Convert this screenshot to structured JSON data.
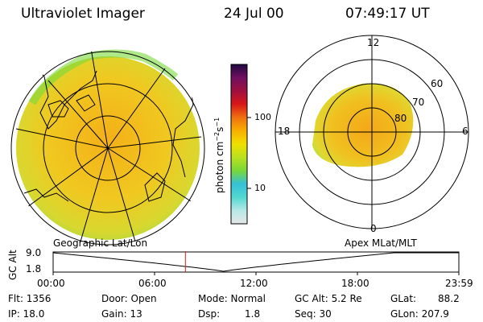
{
  "header": {
    "title": "Ultraviolet Imager",
    "date": "24 Jul 00",
    "time": "07:49:17 UT"
  },
  "geo_panel": {
    "label": "Geographic Lat/Lon"
  },
  "apex_panel": {
    "label": "Apex MLat/MLT",
    "mlt_labels": [
      "12",
      "18",
      "6",
      "0"
    ],
    "lat_labels": [
      "60",
      "70",
      "80"
    ]
  },
  "colorbar": {
    "unit_label": "photon cm",
    "unit_sup1": "−2",
    "unit_mid": "s",
    "unit_sup2": "−1",
    "tick_labels": [
      "100",
      "10"
    ],
    "colors": [
      "#e6e6e6",
      "#b8e8e8",
      "#52d8d0",
      "#36c0d8",
      "#78d838",
      "#b8e020",
      "#f0e000",
      "#f8b000",
      "#f07010",
      "#d81818",
      "#a01040",
      "#701060",
      "#200840"
    ]
  },
  "orbit_plot": {
    "ylabel": "GC Alt",
    "y_ticks": [
      "9.0",
      "1.8"
    ],
    "x_ticks": [
      "00:00",
      "06:00",
      "12:00",
      "18:00",
      "23:59"
    ],
    "marker_time_fraction": 0.326,
    "marker_color": "#e01818"
  },
  "info": {
    "flt": "Flt: 1356",
    "ip": "IP: 18.0",
    "door": "Door: Open",
    "gain": "Gain: 13",
    "mode": "Mode: Normal",
    "dsp_label": "Dsp:",
    "dsp_value": "1.8",
    "gcalt": "GC Alt: 5.2 Re",
    "seq": "Seq: 30",
    "glat": "GLat:",
    "glat_value": "88.2",
    "glon": "GLon: 207.9"
  }
}
